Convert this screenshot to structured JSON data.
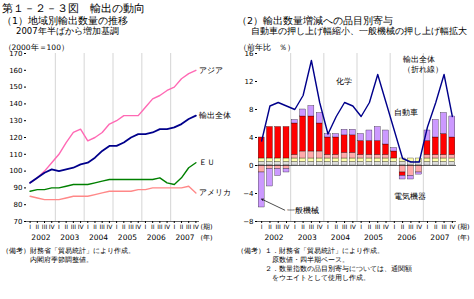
{
  "title": "第１－２－３図　輸出の動向",
  "chart_data": [
    {
      "type": "line",
      "title": "（1）地域別輸出数量の推移",
      "subtitle": "2007年半ばから増加基調",
      "y_label": "（2000年＝100）",
      "x_label": "(期)",
      "year_label": "(年)",
      "categories": [
        "I",
        "II",
        "III",
        "IV",
        "I",
        "II",
        "III",
        "IV",
        "I",
        "II",
        "III",
        "IV",
        "I",
        "II",
        "III",
        "IV",
        "I",
        "II",
        "III",
        "IV",
        "I",
        "II",
        "III",
        "IV"
      ],
      "years": [
        2002,
        2003,
        2004,
        2005,
        2006,
        2007
      ],
      "series": [
        {
          "name": "アジア",
          "color": "#ff69b4",
          "values": [
            93,
            96,
            100,
            105,
            110,
            117,
            123,
            125,
            118,
            120,
            123,
            128,
            130,
            133,
            133,
            133,
            138,
            143,
            145,
            148,
            150,
            155,
            158,
            160
          ]
        },
        {
          "name": "輸出全体",
          "color": "#00008b",
          "values": [
            93,
            96,
            99,
            101,
            100,
            101,
            102,
            104,
            105,
            108,
            112,
            115,
            115,
            117,
            120,
            122,
            122,
            123,
            125,
            125,
            126,
            128,
            131,
            133
          ]
        },
        {
          "name": "ＥＵ",
          "color": "#008000",
          "values": [
            88,
            89,
            89,
            90,
            90,
            91,
            92,
            92,
            92,
            93,
            94,
            95,
            95,
            95,
            95,
            95,
            95,
            95,
            96,
            93,
            92,
            96,
            102,
            105
          ]
        },
        {
          "name": "アメリカ",
          "color": "#ff8888",
          "values": [
            85,
            84,
            83,
            83,
            83,
            84,
            85,
            85,
            85,
            86,
            87,
            88,
            88,
            88,
            88,
            89,
            89,
            90,
            90,
            90,
            90,
            90,
            91,
            87
          ]
        }
      ],
      "ylim": [
        70,
        170
      ],
      "yticks": [
        70,
        80,
        90,
        100,
        110,
        120,
        130,
        140,
        150,
        160,
        170
      ],
      "grid": false,
      "notes": [
        "（備考）財務省「貿易統計」により作成。",
        "　　　　内閣府季節調整値。"
      ]
    },
    {
      "type": "bar",
      "stacked": true,
      "title": "（2）輸出数量増減への品目別寄与",
      "subtitle": "自動車の押し上げ幅縮小、一般機械の押し上げ幅拡大",
      "y_label": "（前年比　％）",
      "x_label": "(期)",
      "year_label": "(年)",
      "categories": [
        "I",
        "II",
        "III",
        "IV",
        "I",
        "II",
        "III",
        "IV",
        "I",
        "II",
        "III",
        "IV",
        "I",
        "II",
        "III",
        "IV",
        "I",
        "II",
        "III",
        "IV",
        "I",
        "II",
        "III",
        "IV"
      ],
      "years": [
        2002,
        2003,
        2004,
        2005,
        2006,
        2007
      ],
      "series": [
        {
          "color": "#dddddd",
          "values": [
            0.5,
            0.5,
            0.5,
            0.5,
            0.5,
            0.5,
            0.5,
            0.5,
            0.5,
            0.5,
            0.5,
            0.5,
            0.5,
            0.5,
            0.5,
            0.5,
            0.5,
            0.5,
            0.5,
            0.5,
            0.5,
            0.5,
            0.5,
            0.5
          ]
        },
        {
          "name": "化学",
          "color": "#ffffaa",
          "values": [
            0.5,
            0.5,
            0.5,
            0.5,
            0.5,
            0.5,
            0.5,
            0.5,
            0.5,
            0.5,
            0.5,
            0.5,
            0.5,
            0.5,
            0.5,
            0.5,
            0.5,
            0.5,
            0.5,
            0.5,
            0.5,
            0.5,
            0.5,
            0.5
          ]
        },
        {
          "name": "電気機器",
          "color": "#ffaaaa",
          "values": [
            -1.0,
            -0.5,
            -0.5,
            -0.5,
            0.5,
            1.0,
            1.0,
            1.0,
            0.5,
            0.5,
            0.8,
            0.8,
            0.5,
            0.5,
            0.5,
            0.5,
            0.0,
            -1.0,
            -1.5,
            -1.0,
            0.5,
            0.5,
            0.5,
            0.5
          ]
        },
        {
          "name": "自動車",
          "color": "#ff0000",
          "values": [
            3.0,
            4.5,
            4.5,
            4.5,
            4.5,
            5.0,
            5.0,
            4.0,
            2.5,
            2.5,
            2.5,
            2.5,
            2.0,
            2.0,
            2.0,
            1.5,
            1.0,
            -0.5,
            0.0,
            0.0,
            2.0,
            2.5,
            3.0,
            2.5
          ]
        },
        {
          "name": "一般機械",
          "color": "#cc99ff",
          "values": [
            -5.0,
            -2.5,
            -1.0,
            -0.5,
            0.5,
            1.0,
            1.5,
            1.5,
            0.5,
            0.5,
            0.8,
            0.8,
            1.0,
            1.5,
            2.0,
            2.0,
            0.5,
            -0.5,
            -0.5,
            -0.3,
            1.5,
            2.5,
            3.0,
            3.0
          ]
        },
        {
          "name": "輸出全体",
          "type": "line",
          "color": "#00008b",
          "annotation": "（折れ線）",
          "values": [
            3.5,
            8.5,
            9.0,
            8.5,
            8.0,
            10.0,
            15.0,
            9.0,
            4.5,
            7.0,
            9.0,
            8.5,
            7.0,
            9.0,
            13.0,
            9.0,
            5.0,
            1.0,
            0.5,
            0.5,
            5.5,
            9.0,
            13.0,
            7.0
          ]
        }
      ],
      "ylim": [
        -8,
        16
      ],
      "yticks": [
        -8,
        -4,
        0,
        4,
        8,
        12,
        16
      ],
      "grid": false,
      "notes": [
        "（備考）１．財務省「貿易統計」により作成。",
        "　　　　　原数値・四半期ベース。",
        "　　　　２．数量指数の品目別寄与については、通関額",
        "　　　　　をウエイトとして使用し作成。"
      ]
    }
  ]
}
